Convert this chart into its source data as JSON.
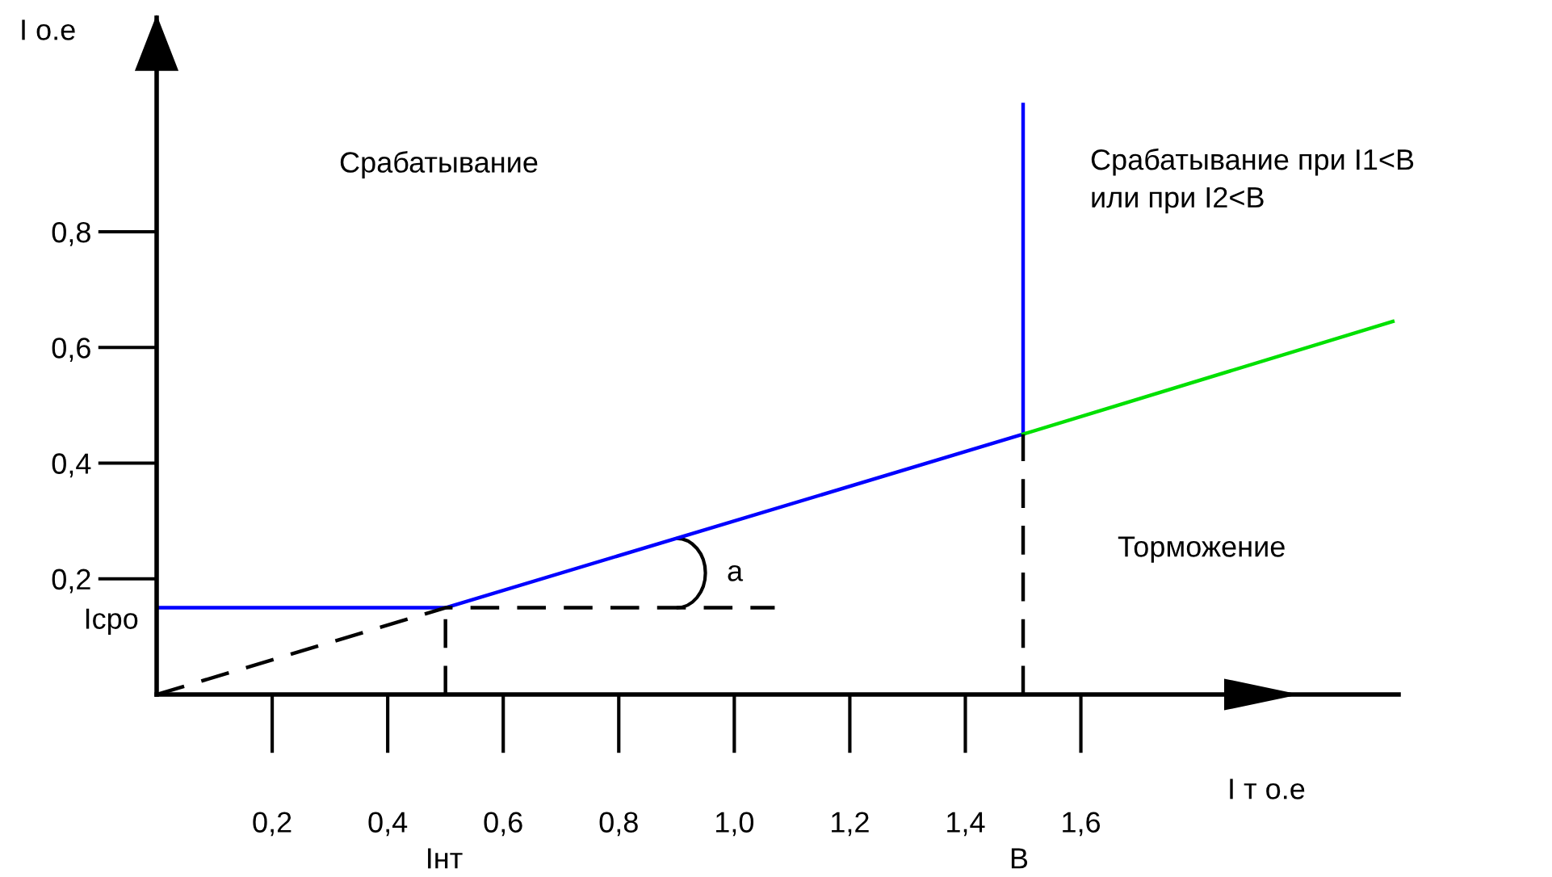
{
  "chart_data": {
    "type": "line",
    "xlabel": "I т о.е",
    "ylabel": "I о.е",
    "xlim": [
      0,
      2.15
    ],
    "ylim": [
      0,
      1.17
    ],
    "xticks": [
      {
        "value": 0.2,
        "label": "0,2"
      },
      {
        "value": 0.4,
        "label": "0,4"
      },
      {
        "value": 0.6,
        "label": "0,6"
      },
      {
        "value": 0.8,
        "label": "0,8"
      },
      {
        "value": 1.0,
        "label": "1,0"
      },
      {
        "value": 1.2,
        "label": "1,2"
      },
      {
        "value": 1.4,
        "label": "1,4"
      },
      {
        "value": 1.6,
        "label": "1,6"
      }
    ],
    "yticks": [
      {
        "value": 0.2,
        "label": "0,2"
      },
      {
        "value": 0.4,
        "label": "0,4"
      },
      {
        "value": 0.6,
        "label": "0,6"
      },
      {
        "value": 0.8,
        "label": "0,8"
      }
    ],
    "grid": false,
    "series": [
      {
        "color": "#0000ff",
        "line_style": "solid",
        "x": [
          0,
          0.5,
          1.5,
          1.5
        ],
        "values": [
          0.15,
          0.15,
          0.45,
          1.02
        ]
      },
      {
        "color": "#00e000",
        "line_style": "solid",
        "x": [
          1.5,
          2.14
        ],
        "values": [
          0.45,
          0.645
        ]
      },
      {
        "color": "#000000",
        "line_style": "dashed",
        "x": [
          0,
          0.5,
          1.07
        ],
        "values": [
          0,
          0.15,
          0.15
        ]
      },
      {
        "color": "#000000",
        "line_style": "dashed",
        "x": [
          0.5,
          0.5
        ],
        "values": [
          0,
          0.15
        ]
      },
      {
        "color": "#000000",
        "line_style": "dashed",
        "x": [
          1.5,
          1.5
        ],
        "values": [
          0,
          0.45
        ]
      }
    ],
    "annotations": [
      "Срабатывание",
      "Срабатывание при I1<B\nили при I2<B",
      "Торможение",
      "a",
      {
        "text": "Iсро",
        "x": 0,
        "y": 0.15
      },
      "Iнт",
      "B"
    ]
  }
}
